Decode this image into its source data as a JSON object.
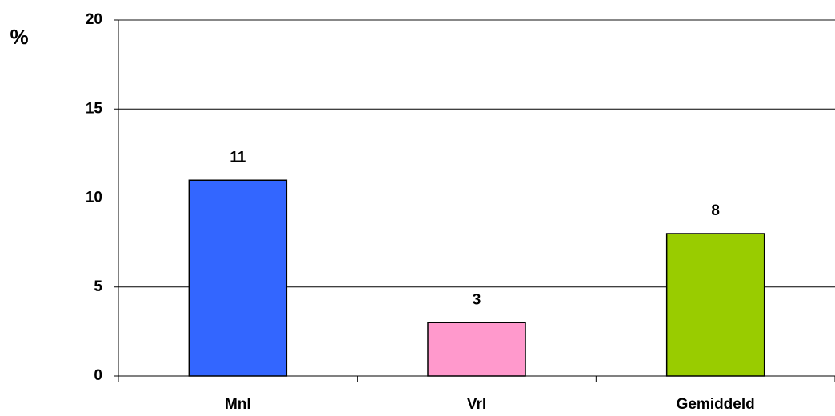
{
  "chart_data": {
    "type": "bar",
    "ylabel": "%",
    "categories": [
      "Mnl",
      "Vrl",
      "Gemiddeld"
    ],
    "values": [
      11,
      3,
      8
    ],
    "colors": [
      "#3366ff",
      "#ff99cc",
      "#99cc00"
    ],
    "ylim": [
      0,
      20
    ],
    "yticks": [
      0,
      5,
      10,
      15,
      20
    ],
    "grid": true
  }
}
